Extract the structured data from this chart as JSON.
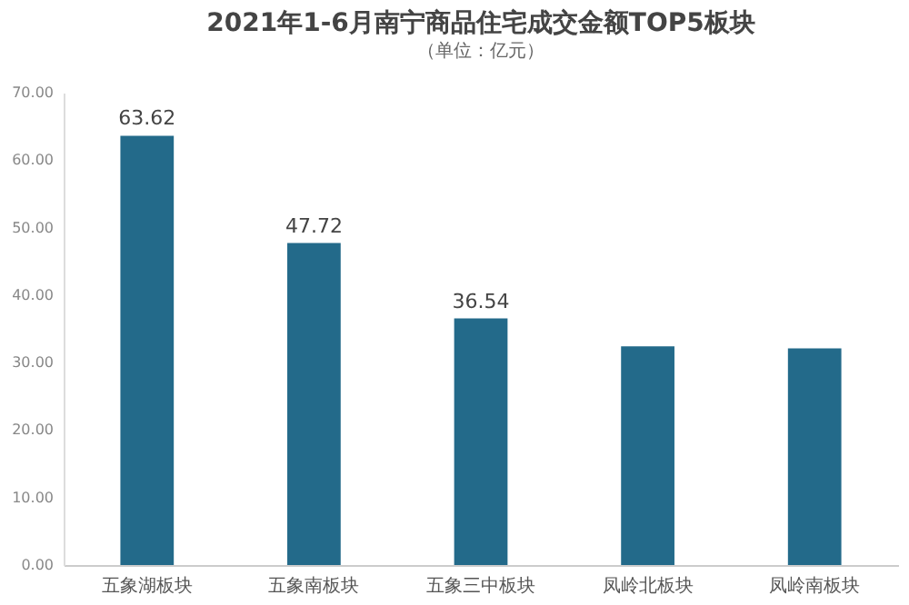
{
  "chart_data": {
    "type": "bar",
    "title": "2021年1-6月南宁商品住宅成交金额TOP5板块",
    "subtitle": "（单位：亿元）",
    "categories": [
      "五象湖板块",
      "五象南板块",
      "五象三中板块",
      "凤岭北板块",
      "凤岭南板块"
    ],
    "values": [
      63.62,
      47.72,
      36.54,
      32.4,
      32.1
    ],
    "value_labels": [
      "63.62",
      "47.72",
      "36.54",
      null,
      null
    ],
    "color": "#236a8a",
    "ylim": [
      0,
      70
    ],
    "yticks": [
      {
        "value": 0,
        "label": "0.00"
      },
      {
        "value": 10,
        "label": "10.00"
      },
      {
        "value": 20,
        "label": "20.00"
      },
      {
        "value": 30,
        "label": "30.00"
      },
      {
        "value": 40,
        "label": "40.00"
      },
      {
        "value": 50,
        "label": "50.00"
      },
      {
        "value": 60,
        "label": "60.00"
      },
      {
        "value": 70,
        "label": "70.00"
      }
    ],
    "grid": false
  }
}
